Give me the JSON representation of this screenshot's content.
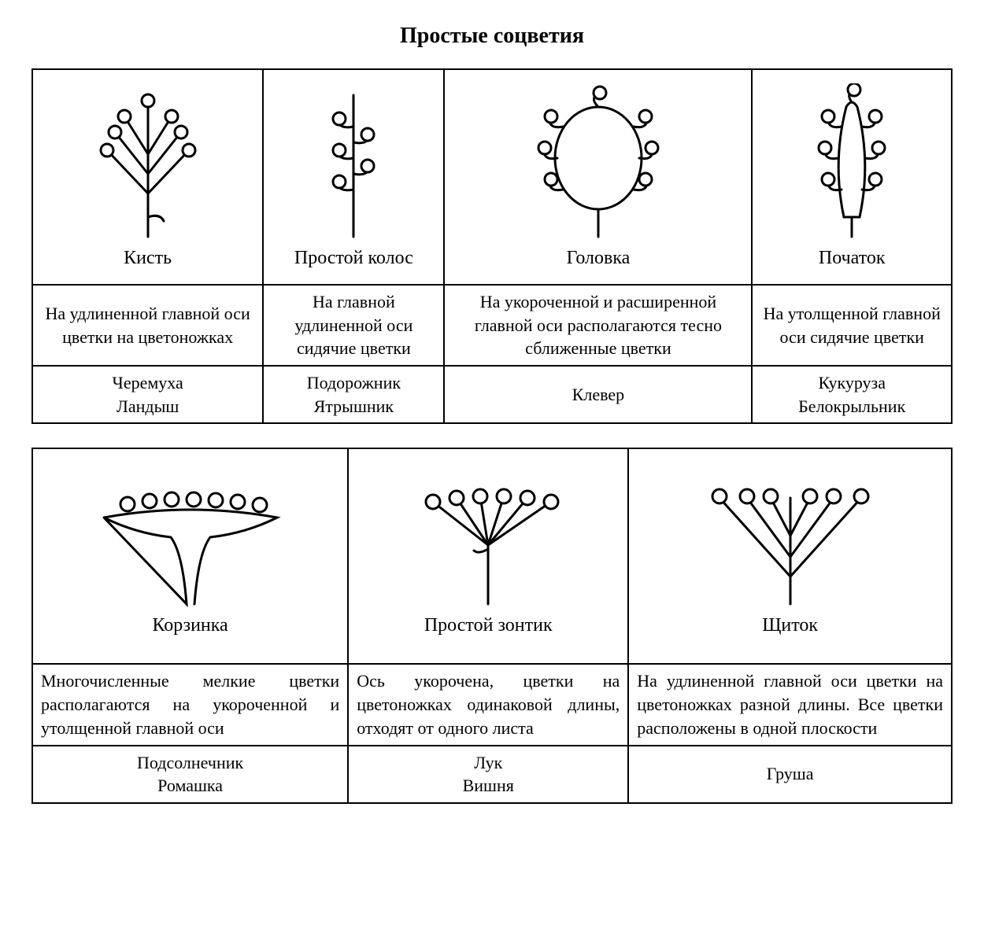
{
  "title": "Простые соцветия",
  "stroke": "#000000",
  "stroke_width": 3,
  "table1": {
    "cols": 4,
    "items": [
      {
        "name": "Кисть",
        "desc": "На удлиненной главной оси цветки на цветоножках",
        "examples": "Черемуха\nЛандыш"
      },
      {
        "name": "Простой колос",
        "desc": "На главной удлиненной оси сидячие цветки",
        "examples": "Подорожник\nЯтрышник"
      },
      {
        "name": "Головка",
        "desc": "На укороченной и расширенной главной оси располагаются тесно сближенные цветки",
        "examples": "Клевер"
      },
      {
        "name": "Початок",
        "desc": "На утолщенной главной оси сидячие цветки",
        "examples": "Кукуруза\nБелокрыльник"
      }
    ]
  },
  "table2": {
    "cols": 3,
    "items": [
      {
        "name": "Корзинка",
        "desc": "Многочисленные мелкие цветки располагаются на укороченной и утолщенной главной оси",
        "examples": "Подсолнечник\nРомашка"
      },
      {
        "name": "Простой зонтик",
        "desc": "Ось укорочена, цветки на цветоножках одинаковой длины, отходят от одного листа",
        "examples": "Лук\nВишня"
      },
      {
        "name": "Щиток",
        "desc": "На удлиненной главной оси цветки на цветоножках разной длины. Все цветки расположены в одной плоскости",
        "examples": "Груша"
      }
    ]
  }
}
